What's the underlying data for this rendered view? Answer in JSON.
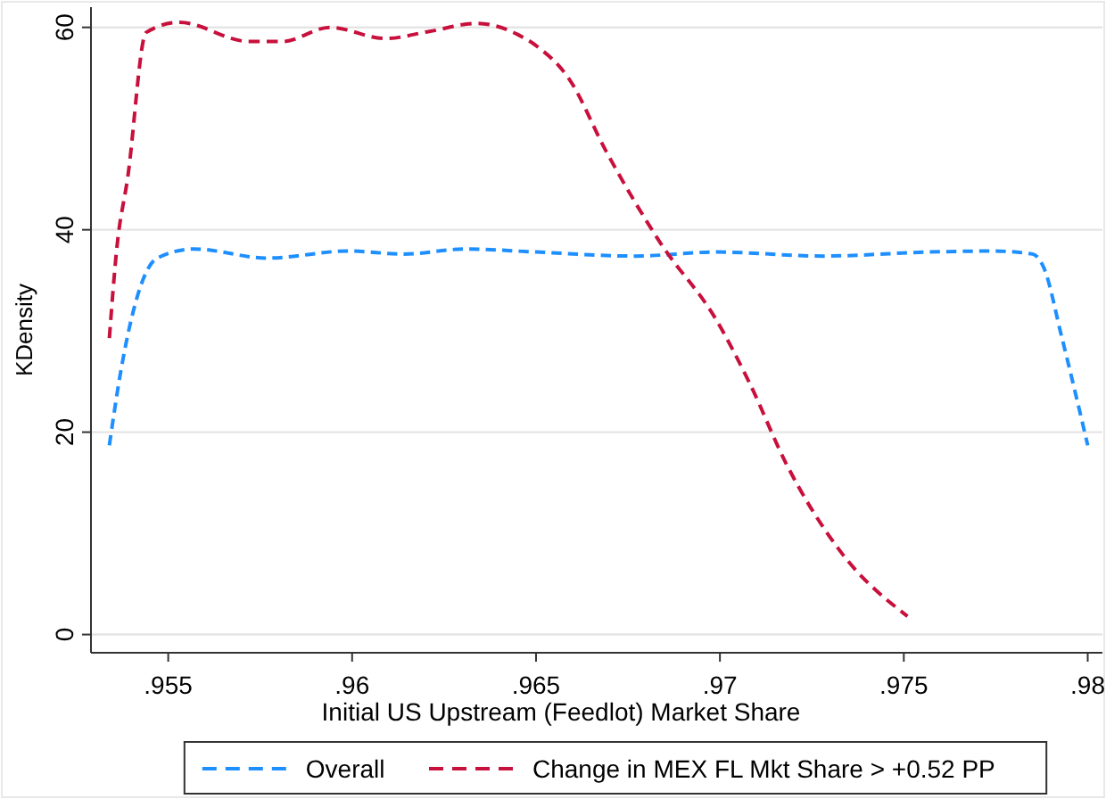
{
  "chart_data": {
    "type": "line",
    "xlabel": "Initial US Upstream (Feedlot) Market Share",
    "ylabel": "KDensity",
    "xlim": [
      0.9529,
      0.9804
    ],
    "xticks": [
      {
        "value": 0.955,
        "label": ".955"
      },
      {
        "value": 0.96,
        "label": ".96"
      },
      {
        "value": 0.965,
        "label": ".965"
      },
      {
        "value": 0.97,
        "label": ".97"
      },
      {
        "value": 0.975,
        "label": ".975"
      },
      {
        "value": 0.98,
        "label": ".98"
      }
    ],
    "ylim": [
      -1.8,
      62
    ],
    "yticks": [
      0,
      20,
      40,
      60
    ],
    "grid": "y",
    "legend": "bottom",
    "line_style": "dashed",
    "series": [
      {
        "name": "Overall",
        "color": "#1e8fff",
        "x": [
          0.9534,
          0.9537,
          0.9547,
          0.9557,
          0.9577,
          0.9599,
          0.9614,
          0.9631,
          0.965,
          0.9677,
          0.9699,
          0.9728,
          0.9757,
          0.9774,
          0.9785,
          0.9788,
          0.9793,
          0.98
        ],
        "values": [
          18.7,
          25.8,
          37.2,
          38.1,
          37.2,
          37.9,
          37.6,
          38.1,
          37.8,
          37.4,
          37.8,
          37.4,
          37.8,
          37.9,
          37.6,
          36.3,
          29.3,
          18.7
        ]
      },
      {
        "name": "Change in MEX FL Mkt Share > +0.52 PP",
        "color": "#c8103c",
        "x": [
          0.9534,
          0.9536,
          0.9539,
          0.9544,
          0.9553,
          0.9572,
          0.9581,
          0.9594,
          0.9609,
          0.9621,
          0.9634,
          0.9645,
          0.965,
          0.9659,
          0.9669,
          0.9684,
          0.9699,
          0.9708,
          0.9718,
          0.9733,
          0.9751
        ],
        "values": [
          29.3,
          38.1,
          45.2,
          59.5,
          60.5,
          58.6,
          58.6,
          60,
          58.9,
          59.6,
          60.4,
          59.3,
          58.2,
          54.9,
          47.8,
          38.6,
          31.1,
          24.9,
          16.9,
          8.1,
          1.8
        ]
      }
    ]
  }
}
